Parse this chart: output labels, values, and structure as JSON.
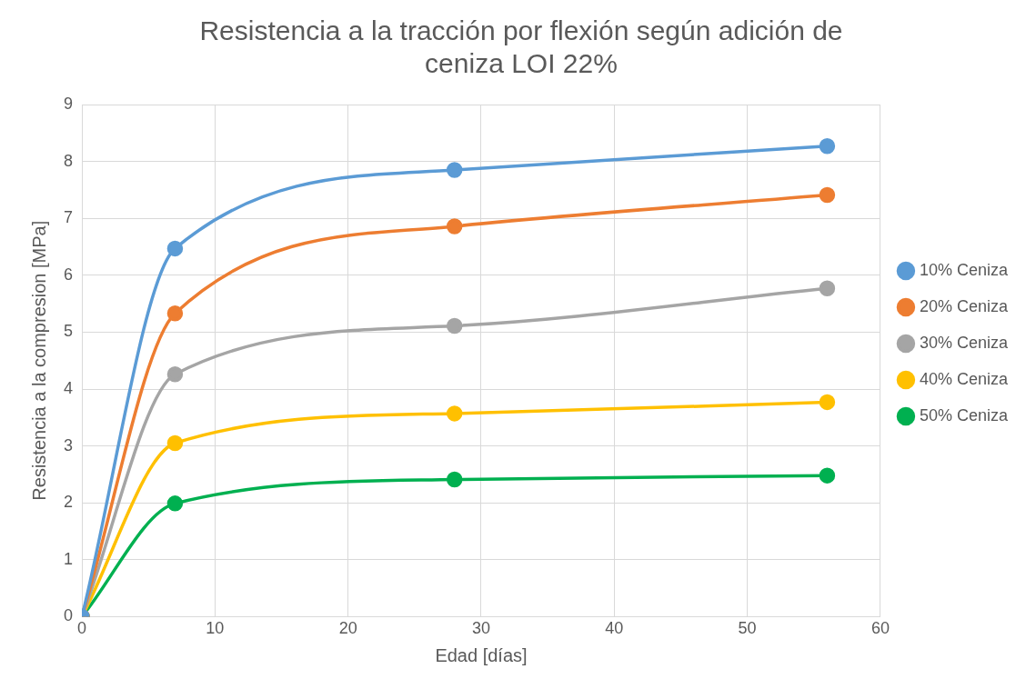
{
  "chart_data": {
    "type": "line",
    "title": "Resistencia a la tracción por flexión según adición de ceniza LOI 22%",
    "xlabel": "Edad [días]",
    "ylabel": "Resistencia a la compresion [MPa]",
    "x": [
      0,
      7,
      28,
      56
    ],
    "series": [
      {
        "name": "10% Ceniza",
        "color": "#5b9bd5",
        "values": [
          0,
          6.47,
          7.85,
          8.27
        ]
      },
      {
        "name": "20% Ceniza",
        "color": "#ed7d31",
        "values": [
          0,
          5.33,
          6.86,
          7.41
        ]
      },
      {
        "name": "30% Ceniza",
        "color": "#a5a5a5",
        "values": [
          0,
          4.26,
          5.11,
          5.77
        ]
      },
      {
        "name": "40% Ceniza",
        "color": "#ffc000",
        "values": [
          0,
          3.05,
          3.57,
          3.77
        ]
      },
      {
        "name": "50% Ceniza",
        "color": "#00b050",
        "values": [
          0,
          1.99,
          2.41,
          2.48
        ]
      }
    ],
    "xlim": [
      0,
      60
    ],
    "xticks": [
      0,
      10,
      20,
      30,
      40,
      50,
      60
    ],
    "ylim": [
      0,
      9
    ],
    "yticks": [
      0,
      1,
      2,
      3,
      4,
      5,
      6,
      7,
      8,
      9
    ],
    "grid": true,
    "legend": "right",
    "marker": "circle",
    "line_style": "solid"
  }
}
